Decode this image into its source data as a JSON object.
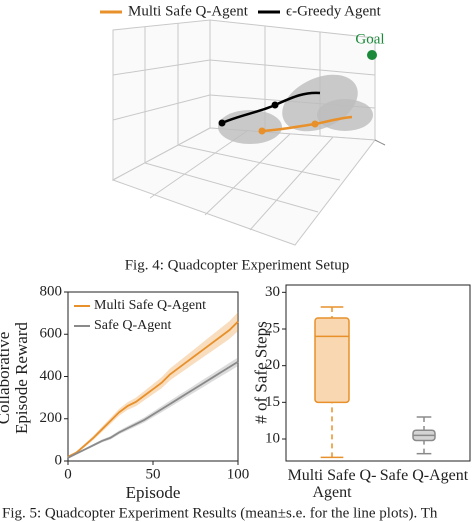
{
  "figure4": {
    "legend": [
      {
        "name": "Multi Safe Q-Agent",
        "color": "#e8902a"
      },
      {
        "name": "ϵ-Greedy Agent",
        "color": "#000000"
      }
    ],
    "goal_label": "Goal",
    "caption": "Fig. 4: Quadcopter Experiment Setup"
  },
  "chart_data": [
    {
      "type": "line",
      "ylabel": "Collaborative Episode Reward",
      "xlabel": "Episode",
      "x": [
        0,
        5,
        10,
        15,
        20,
        25,
        30,
        35,
        40,
        45,
        50,
        55,
        60,
        65,
        70,
        75,
        80,
        85,
        90,
        95,
        100
      ],
      "xlim": [
        0,
        100
      ],
      "xticks": [
        0,
        50,
        100
      ],
      "ylim": [
        0,
        800
      ],
      "yticks": [
        0,
        200,
        400,
        600,
        800
      ],
      "legend": "upper left",
      "series": [
        {
          "name": "Multi Safe Q-Agent",
          "color": "#e8902a",
          "values": [
            20,
            40,
            75,
            110,
            150,
            190,
            230,
            260,
            280,
            310,
            340,
            370,
            410,
            440,
            470,
            500,
            530,
            560,
            590,
            620,
            660
          ],
          "errors": [
            4,
            6,
            8,
            10,
            12,
            14,
            16,
            18,
            20,
            22,
            24,
            26,
            28,
            30,
            32,
            34,
            36,
            38,
            40,
            42,
            45
          ]
        },
        {
          "name": "Safe Q-Agent",
          "color": "#8a8a8a",
          "values": [
            15,
            35,
            55,
            75,
            95,
            110,
            135,
            155,
            175,
            195,
            220,
            245,
            270,
            295,
            320,
            345,
            370,
            395,
            420,
            445,
            470
          ],
          "errors": [
            3,
            4,
            5,
            6,
            7,
            8,
            9,
            10,
            11,
            12,
            13,
            14,
            15,
            16,
            16,
            17,
            18,
            18,
            19,
            20,
            20
          ]
        }
      ]
    },
    {
      "type": "box",
      "ylabel": "# of Safe Steps",
      "categories": [
        "Multi Safe Q-Agent",
        "Safe Q-Agent"
      ],
      "ylim": [
        7,
        31
      ],
      "yticks": [
        10,
        15,
        20,
        25,
        30
      ],
      "series": [
        {
          "color": "#e8902a",
          "fill": "#f9d7b0",
          "min": 7.5,
          "q1": 15,
          "median": 24,
          "q3": 26.5,
          "max": 28
        },
        {
          "color": "#8a8a8a",
          "fill": "#d4d4d4",
          "min": 8,
          "q1": 9.8,
          "median": 10.5,
          "q3": 11.2,
          "max": 13
        }
      ]
    }
  ],
  "figure5": {
    "caption": "Fig. 5: Quadcopter Experiment Results (mean±s.e. for the line plots). Th"
  }
}
